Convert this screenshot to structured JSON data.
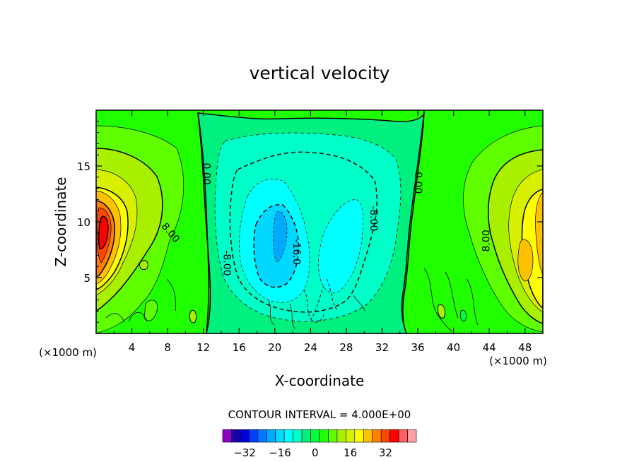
{
  "chart_data": {
    "type": "heatmap",
    "title": "vertical velocity",
    "xlabel": "X-coordinate",
    "ylabel": "Z-coordinate",
    "x_unit_label": "(×1000 m)",
    "x_unit_label_right": "(×1000 m)",
    "xlim": [
      0,
      50
    ],
    "ylim": [
      0,
      20
    ],
    "x_ticks": [
      4,
      8,
      12,
      16,
      20,
      24,
      28,
      32,
      36,
      40,
      44,
      48
    ],
    "y_ticks": [
      5,
      10,
      15
    ],
    "x_tick_labels": [
      "4",
      "8",
      "12",
      "16",
      "20",
      "24",
      "28",
      "32",
      "36",
      "40",
      "44",
      "48"
    ],
    "y_tick_labels": [
      "5",
      "10",
      "15"
    ],
    "contour_interval_text": "CONTOUR INTERVAL = 4.000E+00",
    "contour_interval": 4.0,
    "contour_labels": [
      {
        "text": "0.00",
        "x": 12.3,
        "z": 14.3,
        "rotate": 90
      },
      {
        "text": "0.00",
        "x": 36.0,
        "z": 13.5,
        "rotate": 90
      },
      {
        "text": "8.00",
        "x": 8.3,
        "z": 9.0,
        "rotate": 50
      },
      {
        "text": "8.00",
        "x": 43.7,
        "z": 8.3,
        "rotate": -90
      },
      {
        "text": "-8.00",
        "x": 14.6,
        "z": 6.3,
        "rotate": 90
      },
      {
        "text": "-8.00",
        "x": 31.0,
        "z": 10.3,
        "rotate": 90
      },
      {
        "text": "-16.0",
        "x": 22.4,
        "z": 7.3,
        "rotate": 90
      }
    ],
    "features": [
      {
        "kind": "max",
        "x": 0.8,
        "z": 9.5,
        "value": 28
      },
      {
        "kind": "max",
        "x": 48.3,
        "z": 7.5,
        "value": 16
      },
      {
        "kind": "min",
        "x": 20.5,
        "z": 7.8,
        "value": -18
      },
      {
        "kind": "min",
        "x": 28.5,
        "z": 9.5,
        "value": -12
      },
      {
        "kind": "max",
        "x": 9.0,
        "z": 13.0,
        "value": 5
      }
    ],
    "colorbar": {
      "levels": [
        -36,
        -32,
        -28,
        -24,
        -20,
        -16,
        -12,
        -8,
        -4,
        0,
        4,
        8,
        12,
        16,
        20,
        24,
        28,
        32,
        36
      ],
      "colors": [
        "#8f00c8",
        "#1a00a8",
        "#0000d8",
        "#0040ff",
        "#0078ff",
        "#00a8ff",
        "#00d8ff",
        "#00ffff",
        "#00ffc8",
        "#00f080",
        "#00ff40",
        "#20ff00",
        "#60ff00",
        "#a8f000",
        "#d8f000",
        "#ffff00",
        "#ffc000",
        "#ff8000",
        "#ff4800",
        "#ff0000",
        "#ff6060",
        "#ffa0a0"
      ],
      "tick_values": [
        -32,
        -16,
        0,
        16,
        32
      ],
      "tick_labels": [
        "−32",
        "−16",
        "0",
        "16",
        "32"
      ]
    }
  }
}
